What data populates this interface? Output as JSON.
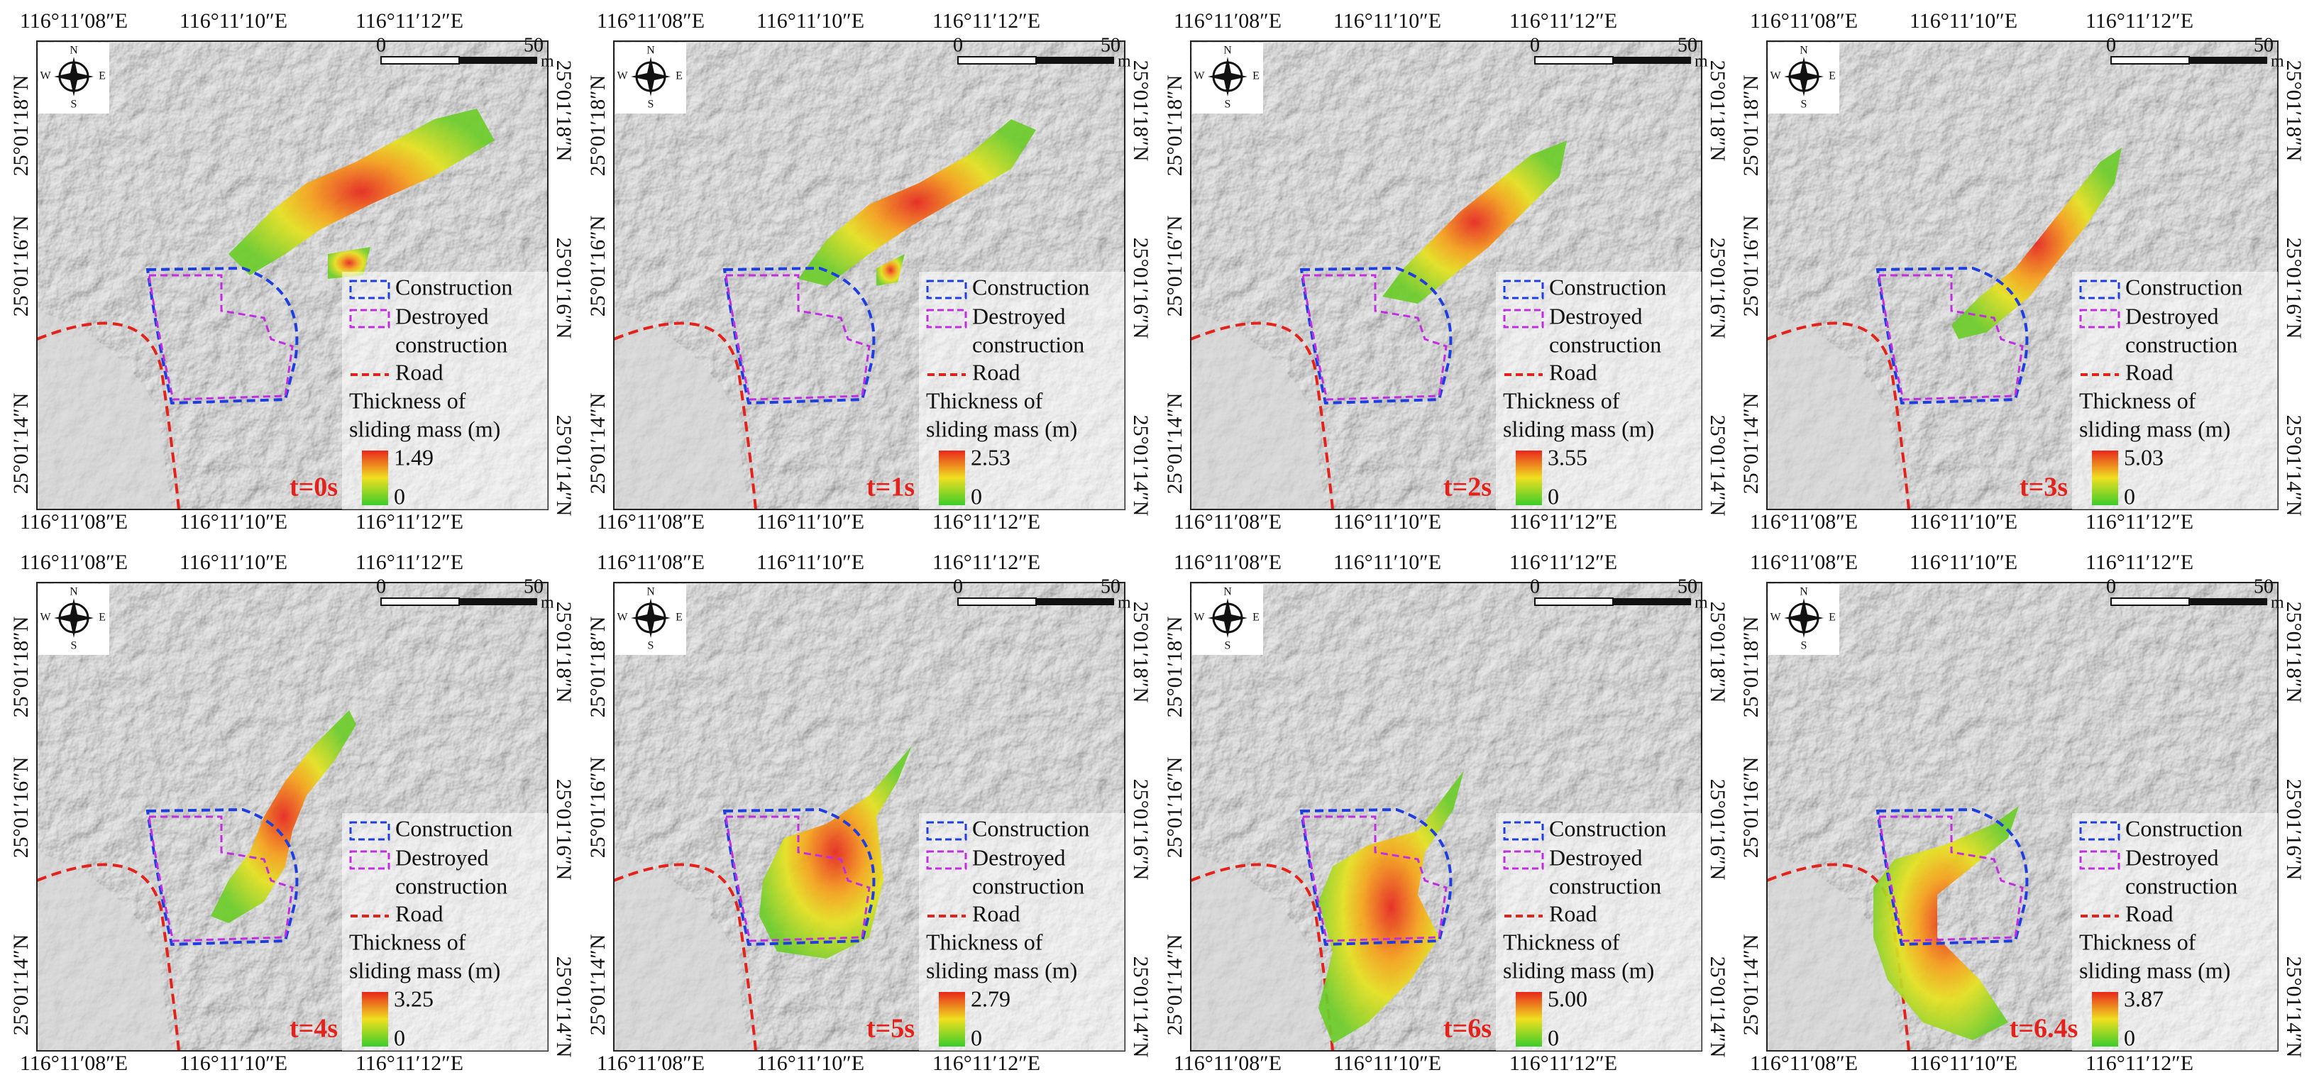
{
  "coordinates": {
    "longitudes": [
      "116°11′08″E",
      "116°11′10″E",
      "116°11′12″E"
    ],
    "latitudes": [
      "25°01′18″N",
      "25°01′16″N",
      "25°01′14″N"
    ]
  },
  "scale_bar": {
    "start": "0",
    "end": "50",
    "unit": "m"
  },
  "compass": {
    "north": "N",
    "south": "S",
    "east": "E",
    "west": "W"
  },
  "legend": {
    "construction": "Construction",
    "destroyed_construction": [
      "Destroyed",
      "construction"
    ],
    "road": "Road",
    "thickness_title": [
      "Thickness of",
      "sliding mass (m)"
    ],
    "thickness_min": "0"
  },
  "panels": [
    {
      "time": "t=0s",
      "thickness_max": "1.49"
    },
    {
      "time": "t=1s",
      "thickness_max": "2.53"
    },
    {
      "time": "t=2s",
      "thickness_max": "3.55"
    },
    {
      "time": "t=3s",
      "thickness_max": "5.03"
    },
    {
      "time": "t=4s",
      "thickness_max": "3.25"
    },
    {
      "time": "t=5s",
      "thickness_max": "2.79"
    },
    {
      "time": "t=6s",
      "thickness_max": "5.00"
    },
    {
      "time": "t=6.4s",
      "thickness_max": "3.87"
    }
  ]
}
